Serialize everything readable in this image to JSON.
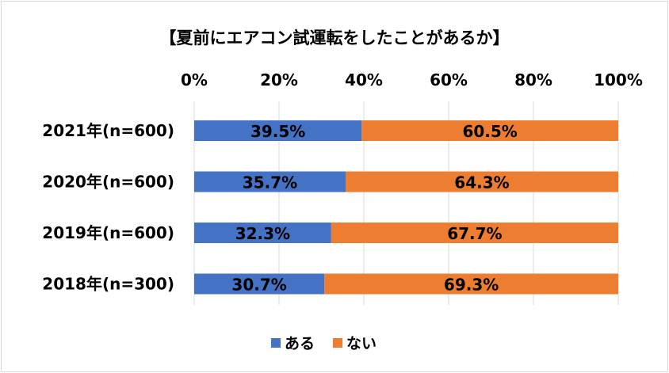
{
  "chart_data": {
    "type": "bar",
    "orientation": "horizontal",
    "stacked": true,
    "percent_stacked": true,
    "title": "【夏前にエアコン試運転をしたことがあるか】",
    "categories": [
      "2021年(n=600)",
      "2020年(n=600)",
      "2019年(n=600)",
      "2018年(n=300)"
    ],
    "series": [
      {
        "name": "ある",
        "values": [
          39.5,
          35.7,
          32.3,
          30.7
        ],
        "color": "#4472c4"
      },
      {
        "name": "ない",
        "values": [
          60.5,
          64.3,
          67.7,
          69.3
        ],
        "color": "#ed7d31"
      }
    ],
    "data_labels": [
      [
        "39.5%",
        "35.7%",
        "32.3%",
        "30.7%"
      ],
      [
        "60.5%",
        "64.3%",
        "67.7%",
        "69.3%"
      ]
    ],
    "x_ticks": [
      "0%",
      "20%",
      "40%",
      "60%",
      "80%",
      "100%"
    ],
    "xlim": [
      0,
      100
    ],
    "x_axis_position": "top",
    "grid": true,
    "legend": "bottom"
  }
}
